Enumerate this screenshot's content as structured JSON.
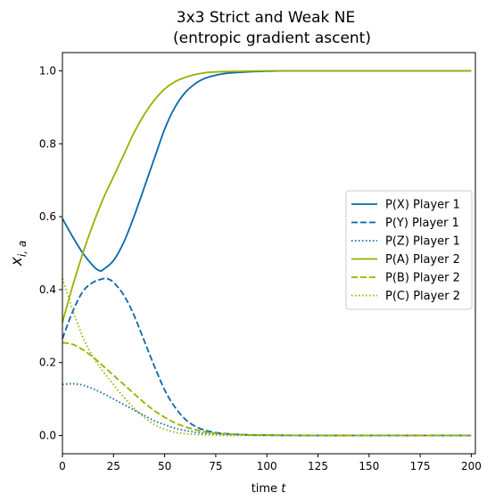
{
  "chart_data": {
    "type": "line",
    "title": "3x3 Strict and Weak NE",
    "subtitle": "(entropic gradient ascent)",
    "xlabel": "time",
    "xlabel_var": "t",
    "ylabel_main": "x",
    "ylabel_sub": "i, a",
    "xlim": [
      0,
      202
    ],
    "ylim": [
      -0.05,
      1.05
    ],
    "xticks": [
      0,
      25,
      50,
      75,
      100,
      125,
      150,
      175,
      200
    ],
    "yticks": [
      0.0,
      0.2,
      0.4,
      0.6,
      0.8,
      1.0
    ],
    "xtick_labels": [
      "0",
      "25",
      "50",
      "75",
      "100",
      "125",
      "150",
      "175",
      "200"
    ],
    "ytick_labels": [
      "0.0",
      "0.2",
      "0.4",
      "0.6",
      "0.8",
      "1.0"
    ],
    "grid": false,
    "legend_position": "center-right",
    "series": [
      {
        "name": "P(X) Player 1",
        "color": "#0868ac",
        "dash": "solid",
        "x": [
          0,
          5,
          10,
          15,
          18,
          20,
          25,
          30,
          35,
          40,
          45,
          50,
          55,
          60,
          65,
          70,
          75,
          80,
          90,
          100,
          110,
          125,
          150,
          175,
          200
        ],
        "y": [
          0.595,
          0.545,
          0.5,
          0.465,
          0.452,
          0.455,
          0.48,
          0.53,
          0.6,
          0.68,
          0.76,
          0.84,
          0.9,
          0.94,
          0.965,
          0.98,
          0.988,
          0.993,
          0.997,
          0.999,
          1.0,
          1.0,
          1.0,
          1.0,
          1.0
        ]
      },
      {
        "name": "P(Y) Player 1",
        "color": "#0868ac",
        "dash": "dashed",
        "x": [
          0,
          5,
          10,
          15,
          20,
          22,
          25,
          30,
          35,
          40,
          45,
          50,
          55,
          60,
          65,
          70,
          75,
          80,
          90,
          100,
          125,
          150,
          175,
          200
        ],
        "y": [
          0.265,
          0.34,
          0.395,
          0.42,
          0.43,
          0.43,
          0.42,
          0.385,
          0.33,
          0.26,
          0.19,
          0.125,
          0.078,
          0.045,
          0.025,
          0.014,
          0.008,
          0.005,
          0.002,
          0.001,
          0.0,
          0.0,
          0.0,
          0.0
        ]
      },
      {
        "name": "P(Z) Player 1",
        "color": "#0868ac",
        "dash": "dotted",
        "x": [
          0,
          5,
          10,
          15,
          20,
          25,
          30,
          35,
          40,
          45,
          50,
          55,
          60,
          65,
          70,
          75,
          80,
          90,
          100,
          125,
          150,
          175,
          200
        ],
        "y": [
          0.14,
          0.142,
          0.138,
          0.128,
          0.115,
          0.1,
          0.085,
          0.07,
          0.055,
          0.04,
          0.03,
          0.02,
          0.014,
          0.009,
          0.006,
          0.004,
          0.002,
          0.001,
          0.0,
          0.0,
          0.0,
          0.0,
          0.0
        ]
      },
      {
        "name": "P(A) Player 2",
        "color": "#99b000",
        "dash": "solid",
        "x": [
          0,
          5,
          10,
          15,
          20,
          25,
          30,
          35,
          40,
          45,
          50,
          55,
          60,
          65,
          70,
          75,
          80,
          90,
          100,
          125,
          150,
          175,
          200
        ],
        "y": [
          0.31,
          0.41,
          0.5,
          0.58,
          0.65,
          0.71,
          0.77,
          0.83,
          0.88,
          0.92,
          0.95,
          0.97,
          0.982,
          0.99,
          0.995,
          0.997,
          0.998,
          0.999,
          1.0,
          1.0,
          1.0,
          1.0,
          1.0
        ]
      },
      {
        "name": "P(B) Player 2",
        "color": "#99b000",
        "dash": "dashed",
        "x": [
          0,
          5,
          10,
          15,
          20,
          25,
          30,
          35,
          40,
          45,
          50,
          55,
          60,
          65,
          70,
          75,
          80,
          90,
          100,
          125,
          150,
          175,
          200
        ],
        "y": [
          0.255,
          0.25,
          0.235,
          0.215,
          0.19,
          0.165,
          0.14,
          0.115,
          0.09,
          0.068,
          0.05,
          0.035,
          0.024,
          0.016,
          0.01,
          0.006,
          0.004,
          0.002,
          0.001,
          0.0,
          0.0,
          0.0,
          0.0
        ]
      },
      {
        "name": "P(C) Player 2",
        "color": "#99b000",
        "dash": "dotted",
        "x": [
          0,
          3,
          5,
          10,
          15,
          20,
          25,
          30,
          35,
          40,
          45,
          50,
          55,
          60,
          65,
          70,
          75,
          80,
          90,
          100,
          125,
          150,
          175,
          200
        ],
        "y": [
          0.43,
          0.38,
          0.345,
          0.27,
          0.215,
          0.175,
          0.14,
          0.105,
          0.075,
          0.05,
          0.03,
          0.017,
          0.009,
          0.005,
          0.003,
          0.002,
          0.001,
          0.0,
          0.0,
          0.0,
          0.0,
          0.0,
          0.0,
          0.0
        ]
      }
    ]
  }
}
